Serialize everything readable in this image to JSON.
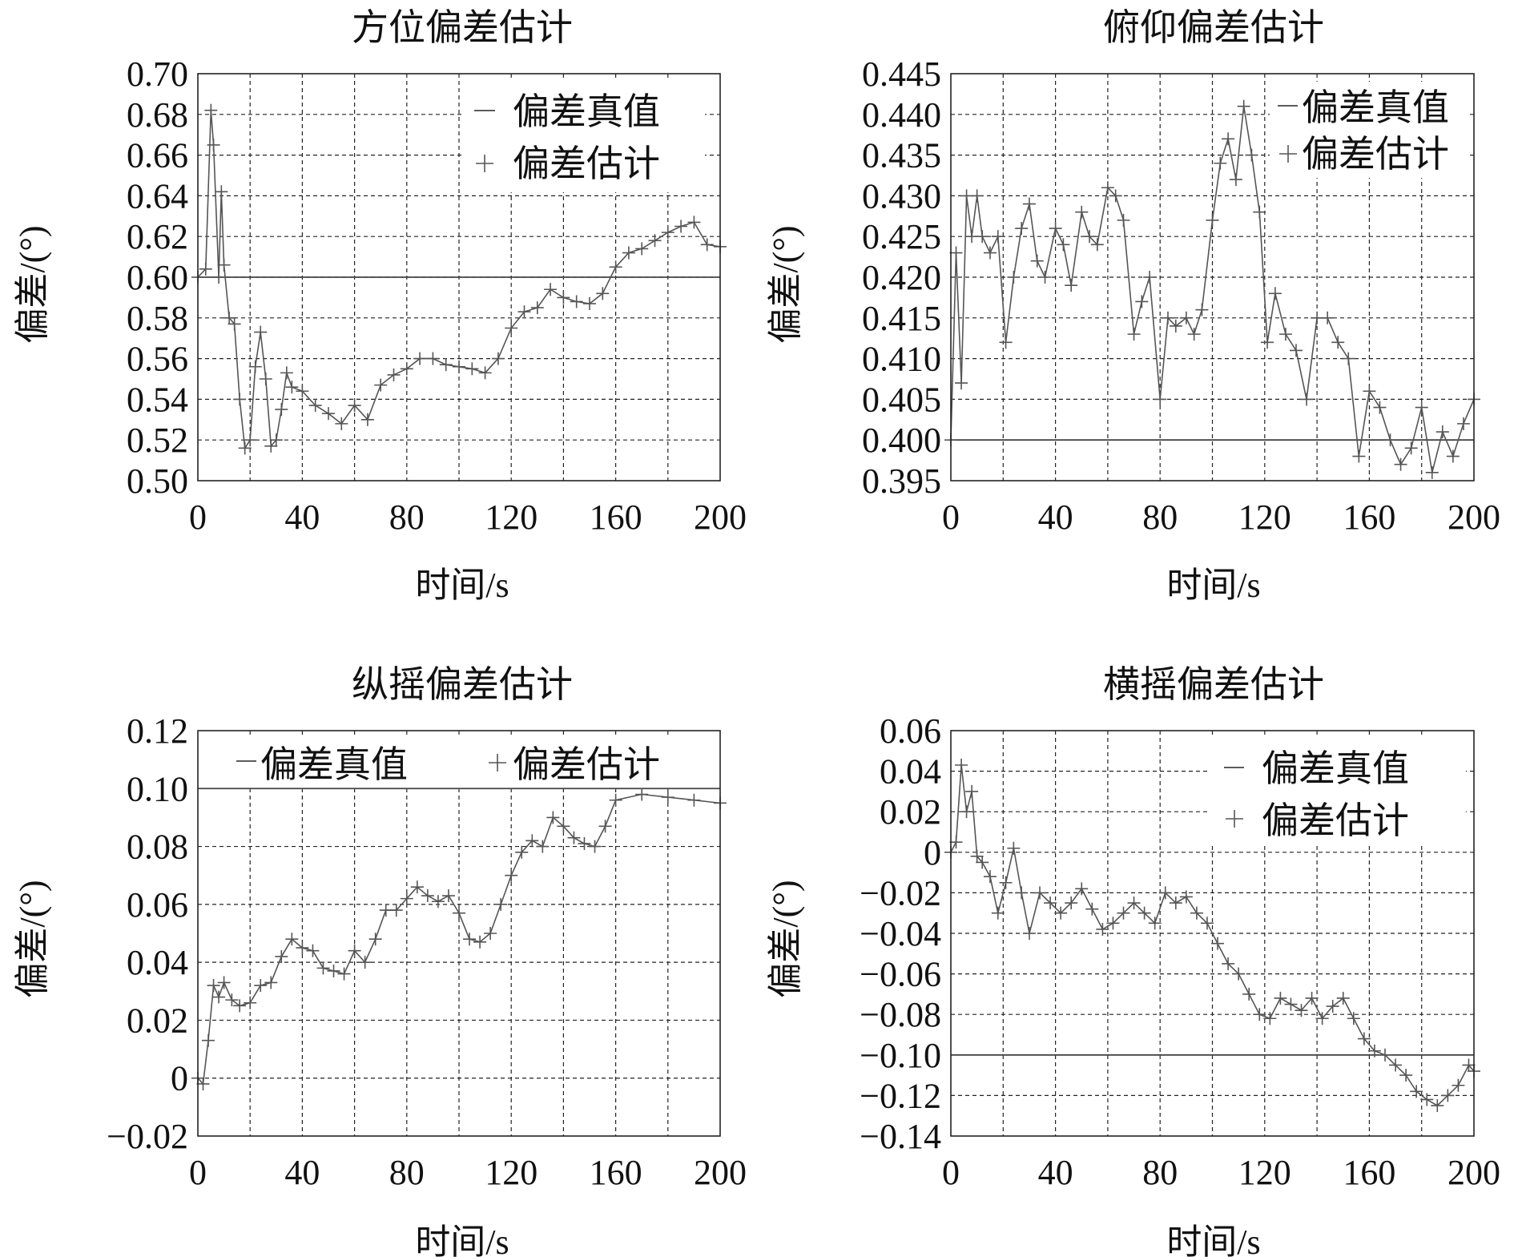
{
  "figure": {
    "legend_truth": "偏差真值",
    "legend_est": "偏差估计"
  },
  "chart_data": [
    {
      "type": "line",
      "title": "方位偏差估计",
      "xlabel": "时间/s",
      "ylabel": "偏差/(°)",
      "xlim": [
        0,
        200
      ],
      "ylim": [
        0.5,
        0.7
      ],
      "xticks": [
        "0",
        "40",
        "80",
        "120",
        "160",
        "200"
      ],
      "yticks": [
        "0.50",
        "0.52",
        "0.54",
        "0.56",
        "0.58",
        "0.60",
        "0.62",
        "0.64",
        "0.66",
        "0.68",
        "0.70"
      ],
      "grid": true,
      "legend": "top-right",
      "series": [
        {
          "name": "偏差真值",
          "x": [
            0,
            200
          ],
          "y": [
            0.6,
            0.6
          ]
        },
        {
          "name": "偏差估计",
          "x": [
            0,
            3,
            5,
            6,
            8,
            9,
            10,
            12,
            14,
            16,
            18,
            20,
            22,
            24,
            26,
            28,
            30,
            32,
            34,
            36,
            40,
            45,
            50,
            55,
            60,
            65,
            70,
            75,
            80,
            85,
            90,
            95,
            100,
            105,
            110,
            115,
            120,
            125,
            130,
            135,
            140,
            145,
            150,
            155,
            160,
            165,
            170,
            175,
            180,
            185,
            190,
            195,
            200
          ],
          "y": [
            0.6,
            0.604,
            0.682,
            0.665,
            0.6,
            0.642,
            0.606,
            0.58,
            0.577,
            0.54,
            0.516,
            0.52,
            0.556,
            0.573,
            0.55,
            0.517,
            0.52,
            0.535,
            0.553,
            0.546,
            0.544,
            0.537,
            0.533,
            0.528,
            0.537,
            0.53,
            0.547,
            0.552,
            0.555,
            0.56,
            0.56,
            0.557,
            0.556,
            0.555,
            0.553,
            0.56,
            0.575,
            0.583,
            0.585,
            0.594,
            0.59,
            0.588,
            0.587,
            0.592,
            0.605,
            0.612,
            0.614,
            0.618,
            0.622,
            0.625,
            0.627,
            0.616,
            0.615
          ]
        }
      ]
    },
    {
      "type": "line",
      "title": "俯仰偏差估计",
      "xlabel": "时间/s",
      "ylabel": "偏差/(°)",
      "xlim": [
        0,
        200
      ],
      "ylim": [
        0.395,
        0.445
      ],
      "xticks": [
        "0",
        "40",
        "80",
        "120",
        "160",
        "200"
      ],
      "yticks": [
        "0.395",
        "0.400",
        "0.405",
        "0.410",
        "0.415",
        "0.420",
        "0.425",
        "0.430",
        "0.435",
        "0.440",
        "0.445"
      ],
      "grid": true,
      "legend": "top-right",
      "series": [
        {
          "name": "偏差真值",
          "x": [
            0,
            200
          ],
          "y": [
            0.4,
            0.4
          ]
        },
        {
          "name": "偏差估计",
          "x": [
            0,
            2,
            4,
            6,
            8,
            10,
            12,
            15,
            18,
            21,
            24,
            27,
            30,
            33,
            36,
            40,
            43,
            46,
            50,
            53,
            56,
            60,
            63,
            66,
            70,
            73,
            76,
            80,
            83,
            86,
            90,
            93,
            96,
            100,
            103,
            106,
            109,
            112,
            115,
            118,
            121,
            124,
            128,
            132,
            136,
            140,
            144,
            148,
            152,
            156,
            160,
            164,
            168,
            172,
            176,
            180,
            184,
            188,
            192,
            196,
            200
          ],
          "y": [
            0.4,
            0.423,
            0.407,
            0.43,
            0.425,
            0.43,
            0.425,
            0.423,
            0.425,
            0.412,
            0.42,
            0.426,
            0.429,
            0.422,
            0.42,
            0.426,
            0.424,
            0.419,
            0.428,
            0.425,
            0.424,
            0.431,
            0.43,
            0.427,
            0.413,
            0.417,
            0.42,
            0.405,
            0.415,
            0.414,
            0.415,
            0.413,
            0.416,
            0.427,
            0.434,
            0.437,
            0.432,
            0.441,
            0.435,
            0.428,
            0.412,
            0.418,
            0.413,
            0.411,
            0.405,
            0.415,
            0.415,
            0.412,
            0.41,
            0.398,
            0.406,
            0.404,
            0.4,
            0.397,
            0.399,
            0.404,
            0.396,
            0.401,
            0.398,
            0.402,
            0.405
          ]
        }
      ]
    },
    {
      "type": "line",
      "title": "纵摇偏差估计",
      "xlabel": "时间/s",
      "ylabel": "偏差/(°)",
      "xlim": [
        0,
        200
      ],
      "ylim": [
        -0.02,
        0.12
      ],
      "xticks": [
        "0",
        "40",
        "80",
        "120",
        "160",
        "200"
      ],
      "yticks": [
        "−0.02",
        "0",
        "0.02",
        "0.04",
        "0.06",
        "0.08",
        "0.10",
        "0.12"
      ],
      "grid": true,
      "legend": "top",
      "series": [
        {
          "name": "偏差真值",
          "x": [
            0,
            200
          ],
          "y": [
            0.1,
            0.1
          ]
        },
        {
          "name": "偏差估计",
          "x": [
            0,
            2,
            4,
            6,
            8,
            10,
            13,
            16,
            20,
            24,
            28,
            32,
            36,
            40,
            44,
            48,
            52,
            56,
            60,
            64,
            68,
            72,
            76,
            80,
            84,
            88,
            92,
            96,
            100,
            104,
            108,
            112,
            116,
            120,
            124,
            128,
            132,
            136,
            140,
            144,
            148,
            152,
            156,
            160,
            170,
            180,
            190,
            200
          ],
          "y": [
            0.0,
            -0.002,
            0.013,
            0.032,
            0.028,
            0.033,
            0.027,
            0.025,
            0.026,
            0.032,
            0.033,
            0.042,
            0.048,
            0.045,
            0.044,
            0.038,
            0.037,
            0.036,
            0.044,
            0.04,
            0.048,
            0.058,
            0.058,
            0.062,
            0.066,
            0.063,
            0.061,
            0.063,
            0.057,
            0.048,
            0.047,
            0.05,
            0.06,
            0.07,
            0.078,
            0.082,
            0.08,
            0.09,
            0.087,
            0.083,
            0.081,
            0.08,
            0.087,
            0.096,
            0.098,
            0.097,
            0.096,
            0.095
          ]
        }
      ]
    },
    {
      "type": "line",
      "title": "横摇偏差估计",
      "xlabel": "时间/s",
      "ylabel": "偏差/(°)",
      "xlim": [
        0,
        200
      ],
      "ylim": [
        -0.14,
        0.06
      ],
      "xticks": [
        "0",
        "40",
        "80",
        "120",
        "160",
        "200"
      ],
      "yticks": [
        "−0.14",
        "−0.12",
        "−0.10",
        "−0.08",
        "−0.06",
        "−0.04",
        "−0.02",
        "0",
        "0.02",
        "0.04",
        "0.06"
      ],
      "grid": true,
      "legend": "top-right",
      "series": [
        {
          "name": "偏差真值",
          "x": [
            0,
            200
          ],
          "y": [
            -0.1,
            -0.1
          ]
        },
        {
          "name": "偏差估计",
          "x": [
            0,
            2,
            4,
            6,
            8,
            10,
            12,
            15,
            18,
            21,
            24,
            27,
            30,
            34,
            38,
            42,
            46,
            50,
            54,
            58,
            62,
            66,
            70,
            74,
            78,
            82,
            86,
            90,
            94,
            98,
            102,
            106,
            110,
            114,
            118,
            122,
            126,
            130,
            134,
            138,
            142,
            146,
            150,
            154,
            158,
            162,
            166,
            170,
            174,
            178,
            182,
            186,
            190,
            194,
            198,
            200
          ],
          "y": [
            0.0,
            0.005,
            0.043,
            0.02,
            0.03,
            -0.002,
            -0.005,
            -0.012,
            -0.03,
            -0.015,
            0.002,
            -0.02,
            -0.04,
            -0.02,
            -0.025,
            -0.03,
            -0.025,
            -0.018,
            -0.028,
            -0.038,
            -0.035,
            -0.03,
            -0.025,
            -0.03,
            -0.035,
            -0.02,
            -0.025,
            -0.022,
            -0.03,
            -0.035,
            -0.045,
            -0.055,
            -0.06,
            -0.07,
            -0.08,
            -0.082,
            -0.072,
            -0.075,
            -0.078,
            -0.072,
            -0.082,
            -0.076,
            -0.072,
            -0.082,
            -0.092,
            -0.098,
            -0.1,
            -0.105,
            -0.11,
            -0.118,
            -0.122,
            -0.125,
            -0.12,
            -0.115,
            -0.105,
            -0.108
          ]
        }
      ]
    }
  ]
}
